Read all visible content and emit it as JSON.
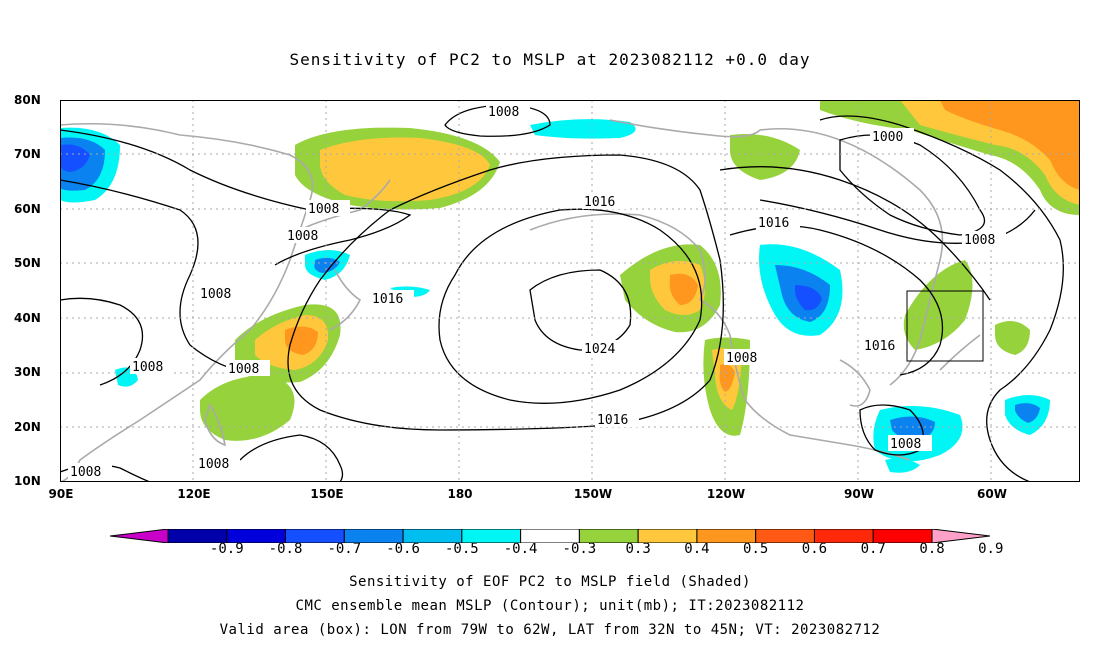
{
  "title": "Sensitivity of PC2 to MSLP at 2023082112 +0.0 day",
  "map": {
    "lat_labels": [
      "80N",
      "70N",
      "60N",
      "50N",
      "40N",
      "30N",
      "20N",
      "10N"
    ],
    "lon_labels": [
      "90E",
      "120E",
      "150E",
      "180",
      "150W",
      "120W",
      "90W",
      "60W"
    ],
    "contour_labels": [
      "1008",
      "1016",
      "1008",
      "1008",
      "1008",
      "1016",
      "1024",
      "1016",
      "1008",
      "1008",
      "1008",
      "1000",
      "1016",
      "1008",
      "1016",
      "1008",
      "1008"
    ],
    "validation_box": {
      "lon_min": "79W",
      "lon_max": "62W",
      "lat_min": "32N",
      "lat_max": "45N"
    }
  },
  "colorbar": {
    "labels": [
      "-0.9",
      "-0.8",
      "-0.7",
      "-0.6",
      "-0.5",
      "-0.4",
      "-0.3",
      "0.3",
      "0.4",
      "0.5",
      "0.6",
      "0.7",
      "0.8",
      "0.9"
    ],
    "colors": [
      "#c800c8",
      "#0000aa",
      "#0000dd",
      "#1450ff",
      "#0a82f0",
      "#00bef0",
      "#00f5f5",
      "#ffffff",
      "#96d23c",
      "#ffc83c",
      "#ff961e",
      "#ff5a14",
      "#ff280a",
      "#ff0000",
      "#ffa0c8"
    ]
  },
  "captions": {
    "line1": "Sensitivity of EOF PC2 to MSLP field (Shaded)",
    "line2": "CMC ensemble mean MSLP (Contour); unit(mb); IT:2023082112",
    "line3": "Valid area (box): LON from 79W to 62W, LAT from 32N to 45N; VT: 2023082712"
  }
}
